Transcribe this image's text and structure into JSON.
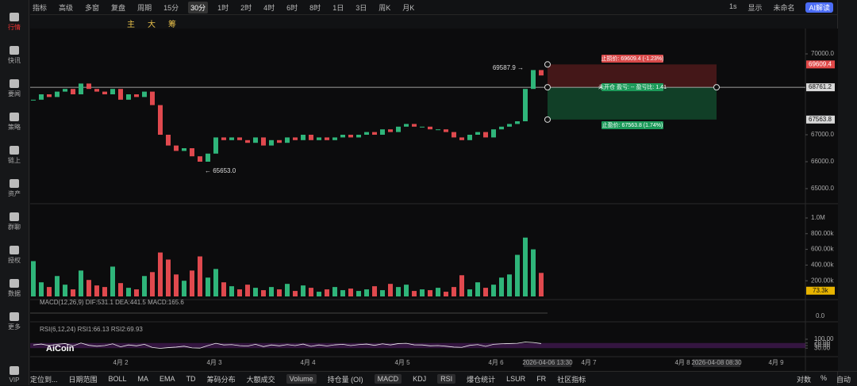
{
  "sidebar": {
    "items": [
      "行情",
      "快讯",
      "要闻",
      "策略",
      "链上",
      "资产",
      "群聊",
      "授权",
      "数据",
      "更多",
      "VIP"
    ]
  },
  "toolbar": {
    "items": [
      "指标",
      "高级",
      "多窗",
      "复盘",
      "周期",
      "15分",
      "30分",
      "1时",
      "2时",
      "4时",
      "6时",
      "8时",
      "1日",
      "3日",
      "周K",
      "月K"
    ],
    "active": "30分",
    "right": [
      "1s",
      "显示",
      "未命名",
      "AI解读"
    ]
  },
  "draw_tools": {
    "items": [
      "主",
      "大",
      "筹"
    ]
  },
  "chart": {
    "price_ticks": [
      {
        "value": 70000,
        "label": "70000.0"
      },
      {
        "value": 67000,
        "label": "67000.0"
      },
      {
        "value": 66000,
        "label": "66000.0"
      },
      {
        "value": 65000,
        "label": "65000.0"
      }
    ],
    "price_tags": [
      {
        "value": 69609.4,
        "label": "69609.4",
        "color": "#e04848"
      },
      {
        "value": 68761.2,
        "label": "68761.2",
        "color": "#d8d8d8"
      },
      {
        "value": 67563.8,
        "label": "67563.8",
        "color": "#d8d8d8"
      }
    ],
    "high_label": {
      "value": 69587.9,
      "label": "69587.9 →"
    },
    "low_label": {
      "value": 65653.0,
      "label": "← 65653.0"
    },
    "stop_loss": "止损价: 69609.4 (-1.23%)",
    "take_profit": "止盈价: 67563.8 (1.74%)",
    "position": "未开仓 盈亏: -- 盈亏比: 1.41",
    "closes": [
      68300,
      68500,
      68400,
      68600,
      68700,
      68500,
      68900,
      68700,
      68600,
      68500,
      68700,
      68300,
      68500,
      68400,
      68600,
      68100,
      67000,
      66600,
      66400,
      66500,
      66200,
      66000,
      66300,
      66900,
      66800,
      66900,
      66800,
      66700,
      66900,
      66600,
      66800,
      66700,
      66900,
      66800,
      67000,
      66800,
      66900,
      66800,
      66900,
      67000,
      66900,
      67000,
      67100,
      67000,
      67200,
      67100,
      67300,
      67400,
      67300,
      67300,
      67200,
      67200,
      67100,
      66900,
      66800,
      67000,
      67100,
      66900,
      67200,
      67300,
      67400,
      67500,
      68700,
      69400,
      69200
    ],
    "volumes": [
      450000,
      180000,
      120000,
      260000,
      150000,
      90000,
      330000,
      210000,
      140000,
      120000,
      380000,
      170000,
      110000,
      90000,
      260000,
      310000,
      560000,
      470000,
      280000,
      200000,
      330000,
      510000,
      240000,
      350000,
      180000,
      130000,
      90000,
      150000,
      110000,
      80000,
      120000,
      90000,
      160000,
      70000,
      140000,
      110000,
      60000,
      90000,
      120000,
      80000,
      100000,
      70000,
      90000,
      130000,
      80000,
      160000,
      120000,
      150000,
      70000,
      90000,
      80000,
      110000,
      60000,
      120000,
      270000,
      90000,
      180000,
      110000,
      150000,
      240000,
      280000,
      530000,
      750000,
      600000,
      300000
    ],
    "volume_ticks": [
      {
        "value": 1000000,
        "label": "1.0M"
      },
      {
        "value": 800000,
        "label": "800.00k"
      },
      {
        "value": 600000,
        "label": "600.00k"
      },
      {
        "value": 400000,
        "label": "400.00k"
      },
      {
        "value": 200000,
        "label": "200.00k"
      }
    ],
    "volume_tag": {
      "value": 73300,
      "label": "73.3k"
    },
    "macd_label": "MACD(12,26,9)  DIF:531.1  DEA:441.5  MACD:165.6",
    "macd_zero": "0.0",
    "rsi_label": "RSI(6,12,24)  RSI1:66.13  RSI2:69.93",
    "rsi_ticks": [
      {
        "value": 100,
        "label": "100.00"
      },
      {
        "value": 70,
        "label": "70.00"
      },
      {
        "value": 50,
        "label": "50.00"
      },
      {
        "value": 30,
        "label": "30.00"
      }
    ],
    "rsi": [
      55,
      62,
      50,
      60,
      66,
      48,
      70,
      52,
      45,
      50,
      64,
      40,
      55,
      48,
      60,
      35,
      28,
      34,
      38,
      45,
      32,
      30,
      50,
      68,
      55,
      58,
      49,
      46,
      60,
      42,
      55,
      48,
      58,
      50,
      62,
      44,
      55,
      47,
      56,
      60,
      50,
      58,
      62,
      52,
      64,
      55,
      66,
      68,
      56,
      55,
      48,
      50,
      45,
      38,
      36,
      52,
      58,
      44,
      60,
      64,
      66,
      68,
      78,
      74,
      66
    ],
    "x_labels": [
      "4月 2",
      "4月 3",
      "4月 4",
      "4月 5",
      "4月 6",
      "2026-04-06 13:30",
      "4月 7",
      "4月 8",
      "2026-04-08 08:30",
      "4月 9"
    ],
    "logo": "AiCoin"
  },
  "bottom_bar": {
    "left": [
      "定位到...",
      "日期范围"
    ],
    "items": [
      "BOLL",
      "MA",
      "EMA",
      "TD",
      "筹码分布",
      "大额成交",
      "Volume",
      "持仓量 (OI)",
      "MACD",
      "KDJ",
      "RSI",
      "爆仓统计",
      "LSUR",
      "FR",
      "社区指标"
    ],
    "right": [
      "对数",
      "%",
      "自动"
    ]
  }
}
